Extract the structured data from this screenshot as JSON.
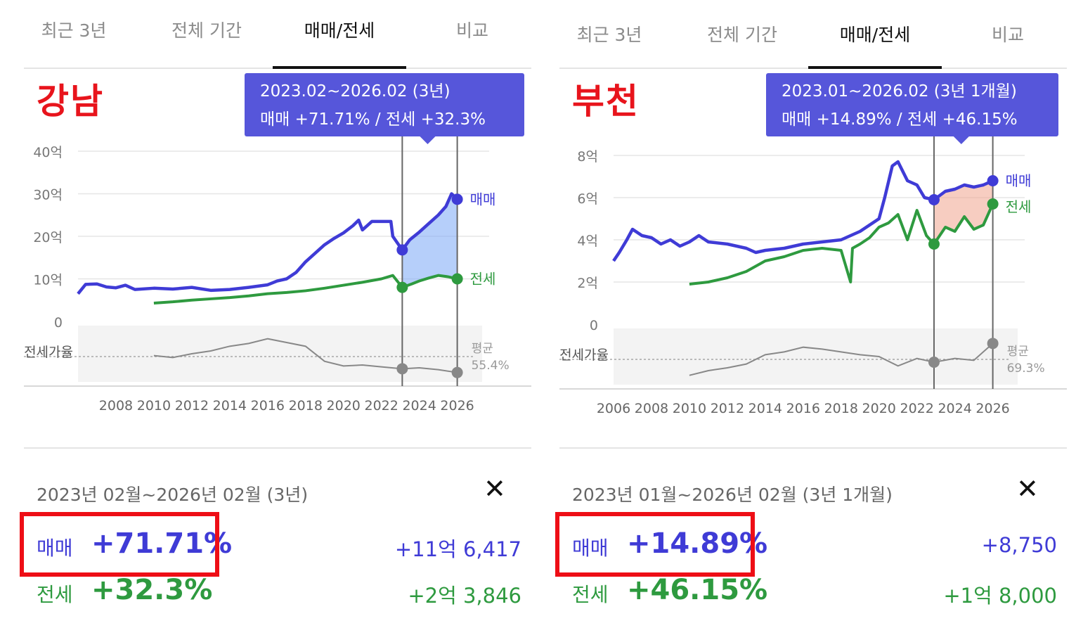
{
  "panels": [
    {
      "region": "강남",
      "tabs": [
        "최근 3년",
        "전체 기간",
        "매매/전세",
        "비교"
      ],
      "active_tab": 2,
      "tooltip": {
        "line1": "2023.02~2026.02 (3년)",
        "line2": "매매 +71.71%  /  전세 +32.3%"
      },
      "summary": {
        "range": "2023년 02월~2026년 02월 (3년)",
        "close": "✕",
        "sale_label": "매매",
        "sale_pct": "+71.71%",
        "sale_amount": "+11억 6,417",
        "jeonse_label": "전세",
        "jeonse_pct": "+32.3%",
        "jeonse_amount": "+2억 3,846"
      },
      "chart_data": {
        "type": "line",
        "y_ticks": [
          "40억",
          "30억",
          "20억",
          "10억",
          "0"
        ],
        "ylim": [
          0,
          40
        ],
        "x_ticks": [
          "2008",
          "2010",
          "2012",
          "2014",
          "2016",
          "2018",
          "2020",
          "2022",
          "2024",
          "2026"
        ],
        "xlim": [
          2006.0,
          2026.2
        ],
        "ratio_label": "전세가율",
        "avg_label": "평균",
        "avg_value": "55.4%",
        "series": [
          {
            "name": "매매",
            "color": "#3f3bd6",
            "points": [
              [
                2006.0,
                6.5
              ],
              [
                2006.4,
                8.7
              ],
              [
                2007.0,
                8.8
              ],
              [
                2007.5,
                8.1
              ],
              [
                2008.0,
                7.9
              ],
              [
                2008.5,
                8.5
              ],
              [
                2009.0,
                7.5
              ],
              [
                2010.0,
                7.8
              ],
              [
                2011.0,
                7.6
              ],
              [
                2012.0,
                8.0
              ],
              [
                2013.0,
                7.3
              ],
              [
                2014.0,
                7.5
              ],
              [
                2015.0,
                8.0
              ],
              [
                2016.0,
                8.6
              ],
              [
                2016.5,
                9.5
              ],
              [
                2017.0,
                10.0
              ],
              [
                2017.5,
                11.5
              ],
              [
                2018.0,
                14.0
              ],
              [
                2018.5,
                16.0
              ],
              [
                2019.0,
                18.0
              ],
              [
                2019.5,
                19.5
              ],
              [
                2020.0,
                20.8
              ],
              [
                2020.5,
                22.5
              ],
              [
                2020.8,
                23.8
              ],
              [
                2021.0,
                21.5
              ],
              [
                2021.5,
                23.5
              ],
              [
                2022.5,
                23.5
              ],
              [
                2022.6,
                20.0
              ],
              [
                2023.1,
                16.8
              ],
              [
                2023.5,
                19.2
              ],
              [
                2024.0,
                21.0
              ],
              [
                2024.5,
                23.0
              ],
              [
                2025.0,
                25.0
              ],
              [
                2025.4,
                27.0
              ],
              [
                2025.7,
                30.0
              ],
              [
                2026.0,
                28.7
              ]
            ]
          },
          {
            "name": "전세",
            "color": "#2e9a3f",
            "points": [
              [
                2010.0,
                4.3
              ],
              [
                2011.0,
                4.6
              ],
              [
                2012.0,
                5.0
              ],
              [
                2013.0,
                5.3
              ],
              [
                2014.0,
                5.6
              ],
              [
                2015.0,
                6.0
              ],
              [
                2016.0,
                6.5
              ],
              [
                2017.0,
                6.8
              ],
              [
                2018.0,
                7.2
              ],
              [
                2019.0,
                7.8
              ],
              [
                2020.0,
                8.5
              ],
              [
                2021.0,
                9.2
              ],
              [
                2022.0,
                10.0
              ],
              [
                2022.6,
                10.8
              ],
              [
                2023.1,
                8.0
              ],
              [
                2023.6,
                8.8
              ],
              [
                2024.0,
                9.5
              ],
              [
                2024.5,
                10.2
              ],
              [
                2025.0,
                10.8
              ],
              [
                2025.5,
                10.5
              ],
              [
                2026.0,
                10.0
              ]
            ]
          },
          {
            "name": "전세가율",
            "points": [
              [
                2010.0,
                68
              ],
              [
                2011.0,
                66
              ],
              [
                2012.0,
                70
              ],
              [
                2013.0,
                73
              ],
              [
                2014.0,
                78
              ],
              [
                2015.0,
                81
              ],
              [
                2016.0,
                86
              ],
              [
                2017.0,
                82
              ],
              [
                2018.0,
                78
              ],
              [
                2019.0,
                62
              ],
              [
                2020.0,
                57
              ],
              [
                2021.0,
                58
              ],
              [
                2022.0,
                56
              ],
              [
                2023.1,
                54
              ],
              [
                2024.0,
                55
              ],
              [
                2025.0,
                53
              ],
              [
                2026.0,
                50
              ]
            ]
          }
        ],
        "highlight": {
          "from": 2023.1,
          "to": 2026.0,
          "color": "#7aa8f5"
        }
      }
    },
    {
      "region": "부천",
      "tabs": [
        "최근 3년",
        "전체 기간",
        "매매/전세",
        "비교"
      ],
      "active_tab": 2,
      "tooltip": {
        "line1": "2023.01~2026.02 (3년 1개월)",
        "line2": "매매 +14.89%  /  전세 +46.15%"
      },
      "summary": {
        "range": "2023년 01월~2026년 02월 (3년 1개월)",
        "close": "✕",
        "sale_label": "매매",
        "sale_pct": "+14.89%",
        "sale_amount": "+8,750",
        "jeonse_label": "전세",
        "jeonse_pct": "+46.15%",
        "jeonse_amount": "+1억 8,000"
      },
      "chart_data": {
        "type": "line",
        "y_ticks": [
          "8억",
          "6억",
          "4억",
          "2억",
          "0"
        ],
        "ylim": [
          0,
          8
        ],
        "x_ticks": [
          "2006",
          "2008",
          "2010",
          "2012",
          "2014",
          "2016",
          "2018",
          "2020",
          "2022",
          "2024",
          "2026"
        ],
        "xlim": [
          2006.0,
          2026.2
        ],
        "ratio_label": "전세가율",
        "avg_label": "평균",
        "avg_value": "69.3%",
        "series": [
          {
            "name": "매매",
            "color": "#3f3bd6",
            "points": [
              [
                2006.0,
                3.0
              ],
              [
                2006.3,
                3.4
              ],
              [
                2006.7,
                4.0
              ],
              [
                2007.0,
                4.5
              ],
              [
                2007.5,
                4.2
              ],
              [
                2008.0,
                4.1
              ],
              [
                2008.5,
                3.8
              ],
              [
                2009.0,
                4.0
              ],
              [
                2009.5,
                3.7
              ],
              [
                2010.0,
                3.9
              ],
              [
                2010.5,
                4.2
              ],
              [
                2011.0,
                3.9
              ],
              [
                2012.0,
                3.8
              ],
              [
                2013.0,
                3.6
              ],
              [
                2013.5,
                3.4
              ],
              [
                2014.0,
                3.5
              ],
              [
                2015.0,
                3.6
              ],
              [
                2016.0,
                3.8
              ],
              [
                2017.0,
                3.9
              ],
              [
                2018.0,
                4.0
              ],
              [
                2019.0,
                4.4
              ],
              [
                2019.5,
                4.7
              ],
              [
                2020.0,
                5.0
              ],
              [
                2020.3,
                6.0
              ],
              [
                2020.7,
                7.5
              ],
              [
                2021.0,
                7.7
              ],
              [
                2021.5,
                6.8
              ],
              [
                2022.0,
                6.6
              ],
              [
                2022.4,
                6.0
              ],
              [
                2022.9,
                5.9
              ],
              [
                2023.5,
                6.3
              ],
              [
                2024.0,
                6.4
              ],
              [
                2024.5,
                6.6
              ],
              [
                2025.0,
                6.5
              ],
              [
                2025.5,
                6.6
              ],
              [
                2026.0,
                6.8
              ]
            ]
          },
          {
            "name": "전세",
            "color": "#2e9a3f",
            "points": [
              [
                2010.0,
                1.9
              ],
              [
                2011.0,
                2.0
              ],
              [
                2012.0,
                2.2
              ],
              [
                2013.0,
                2.5
              ],
              [
                2014.0,
                3.0
              ],
              [
                2015.0,
                3.2
              ],
              [
                2016.0,
                3.5
              ],
              [
                2017.0,
                3.6
              ],
              [
                2018.0,
                3.5
              ],
              [
                2018.5,
                2.0
              ],
              [
                2018.6,
                3.6
              ],
              [
                2019.0,
                3.8
              ],
              [
                2019.5,
                4.1
              ],
              [
                2020.0,
                4.6
              ],
              [
                2020.5,
                4.8
              ],
              [
                2021.0,
                5.2
              ],
              [
                2021.5,
                4.0
              ],
              [
                2022.0,
                5.4
              ],
              [
                2022.5,
                4.2
              ],
              [
                2022.9,
                3.8
              ],
              [
                2023.5,
                4.6
              ],
              [
                2024.0,
                4.4
              ],
              [
                2024.5,
                5.1
              ],
              [
                2025.0,
                4.5
              ],
              [
                2025.5,
                4.7
              ],
              [
                2026.0,
                5.7
              ]
            ]
          },
          {
            "name": "전세가율",
            "points": [
              [
                2010.0,
                50
              ],
              [
                2011.0,
                55
              ],
              [
                2012.0,
                58
              ],
              [
                2013.0,
                62
              ],
              [
                2014.0,
                72
              ],
              [
                2015.0,
                75
              ],
              [
                2016.0,
                80
              ],
              [
                2017.0,
                78
              ],
              [
                2018.0,
                75
              ],
              [
                2019.0,
                72
              ],
              [
                2020.0,
                70
              ],
              [
                2021.0,
                60
              ],
              [
                2022.0,
                68
              ],
              [
                2022.9,
                64
              ],
              [
                2024.0,
                68
              ],
              [
                2025.0,
                66
              ],
              [
                2026.0,
                84
              ]
            ]
          }
        ],
        "highlight": {
          "from": 2022.9,
          "to": 2026.0,
          "color": "#f0a48e"
        }
      }
    }
  ]
}
